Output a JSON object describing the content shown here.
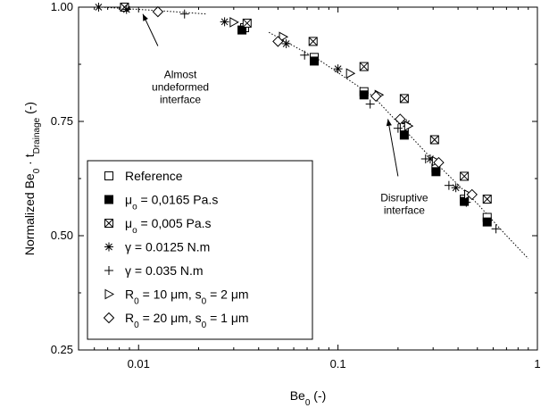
{
  "chart_data": {
    "type": "scatter",
    "xscale": "log",
    "xlim": [
      0.005,
      1
    ],
    "ylim": [
      0.25,
      1.0
    ],
    "x_ticks": [
      0.01,
      0.1,
      1
    ],
    "x_tick_labels": [
      "0.01",
      "0.1",
      "1"
    ],
    "y_ticks": [
      0.25,
      0.5,
      0.75,
      1.0
    ],
    "y_tick_labels": [
      "0.25",
      "0.50",
      "0.75",
      "1.00"
    ],
    "xlabel": {
      "main": "Be",
      "sub": "0",
      "rest": " (-)"
    },
    "ylabel": {
      "part1": "Normalized Be",
      "sub1": "0",
      "part2": " · t",
      "sub2": "Drainage",
      "part3": " (-)"
    },
    "legend_position": "bottom-left",
    "series": [
      {
        "marker": "open-square",
        "legend": {
          "main": "Reference",
          "sub": "",
          "rest": ""
        },
        "points": [
          [
            0.0085,
            1.0
          ],
          [
            0.034,
            0.955
          ],
          [
            0.076,
            0.89
          ],
          [
            0.135,
            0.815
          ],
          [
            0.215,
            0.738
          ],
          [
            0.31,
            0.648
          ],
          [
            0.43,
            0.58
          ],
          [
            0.56,
            0.54
          ]
        ]
      },
      {
        "marker": "filled-square",
        "legend": {
          "main": "μ",
          "sub": "o",
          "rest": " = 0,0165 Pa.s"
        },
        "points": [
          [
            0.033,
            0.95
          ],
          [
            0.076,
            0.882
          ],
          [
            0.135,
            0.808
          ],
          [
            0.215,
            0.72
          ],
          [
            0.31,
            0.64
          ],
          [
            0.43,
            0.575
          ],
          [
            0.56,
            0.53
          ]
        ]
      },
      {
        "marker": "crossed-square",
        "legend": {
          "main": "μ",
          "sub": "o",
          "rest": " = 0,005 Pa.s"
        },
        "points": [
          [
            0.0085,
            1.0
          ],
          [
            0.035,
            0.965
          ],
          [
            0.075,
            0.925
          ],
          [
            0.135,
            0.87
          ],
          [
            0.215,
            0.8
          ],
          [
            0.305,
            0.71
          ],
          [
            0.43,
            0.63
          ],
          [
            0.56,
            0.58
          ]
        ]
      },
      {
        "marker": "asterisk",
        "legend": {
          "main": "γ = 0.0125 N.m",
          "sub": "",
          "rest": ""
        },
        "points": [
          [
            0.0063,
            1.0
          ],
          [
            0.0087,
            0.995
          ],
          [
            0.027,
            0.968
          ],
          [
            0.055,
            0.92
          ],
          [
            0.1,
            0.865
          ],
          [
            0.22,
            0.745
          ],
          [
            0.29,
            0.668
          ],
          [
            0.39,
            0.605
          ]
        ]
      },
      {
        "marker": "plus",
        "legend": {
          "main": "+",
          "sub": "",
          "rest": ""
        },
        "legend_alt": "γ = 0.035 N.m",
        "points": [
          [
            0.017,
            0.985
          ],
          [
            0.068,
            0.895
          ],
          [
            0.145,
            0.788
          ],
          [
            0.2,
            0.735
          ],
          [
            0.275,
            0.668
          ],
          [
            0.36,
            0.61
          ],
          [
            0.44,
            0.573
          ],
          [
            0.62,
            0.515
          ]
        ]
      },
      {
        "marker": "open-triangle-right",
        "legend": {
          "main": "R",
          "sub": "0",
          "rest": " = 10 μm, s",
          "sub2": "0",
          "rest2": " = 2 μm"
        },
        "points": [
          [
            0.03,
            0.967
          ],
          [
            0.053,
            0.935
          ],
          [
            0.115,
            0.855
          ],
          [
            0.16,
            0.808
          ],
          [
            0.225,
            0.74
          ],
          [
            0.31,
            0.663
          ],
          [
            0.45,
            0.59
          ]
        ]
      },
      {
        "marker": "open-diamond",
        "legend": {
          "main": "R",
          "sub": "0",
          "rest": " = 20 μm, s",
          "sub2": "0",
          "rest2": " = 1 μm"
        },
        "points": [
          [
            0.0125,
            0.99
          ],
          [
            0.05,
            0.925
          ],
          [
            0.155,
            0.805
          ],
          [
            0.205,
            0.755
          ],
          [
            0.32,
            0.66
          ],
          [
            0.47,
            0.59
          ]
        ]
      }
    ],
    "trend_lines": [
      {
        "points": [
          [
            0.0065,
            1.0
          ],
          [
            0.012,
            0.993
          ],
          [
            0.022,
            0.985
          ]
        ]
      },
      {
        "points": [
          [
            0.045,
            0.945
          ],
          [
            0.08,
            0.885
          ],
          [
            0.15,
            0.805
          ],
          [
            0.3,
            0.665
          ],
          [
            0.5,
            0.57
          ],
          [
            0.7,
            0.5
          ],
          [
            0.9,
            0.45
          ]
        ]
      }
    ],
    "annotations": [
      {
        "lines": [
          "Almost",
          "undeformed",
          "interface"
        ],
        "label_x": 0.0162,
        "label_y": 0.845,
        "arrow_from": [
          0.0125,
          0.915
        ],
        "arrow_to": [
          0.0105,
          0.985
        ]
      },
      {
        "lines": [
          "Disruptive",
          "interface"
        ],
        "label_x": 0.215,
        "label_y": 0.575,
        "arrow_from": [
          0.2,
          0.63
        ],
        "arrow_to": [
          0.178,
          0.755
        ]
      }
    ],
    "legend_items_text": [
      "Reference",
      "μₒ = 0,0165 Pa.s",
      "μₒ = 0,005 Pa.s",
      "γ = 0.0125 N.m",
      "γ = 0.035 N.m",
      "R₀ = 10 μm, s₀ = 2 μm",
      "R₀ = 20 μm, s₀ = 1 μm"
    ]
  }
}
